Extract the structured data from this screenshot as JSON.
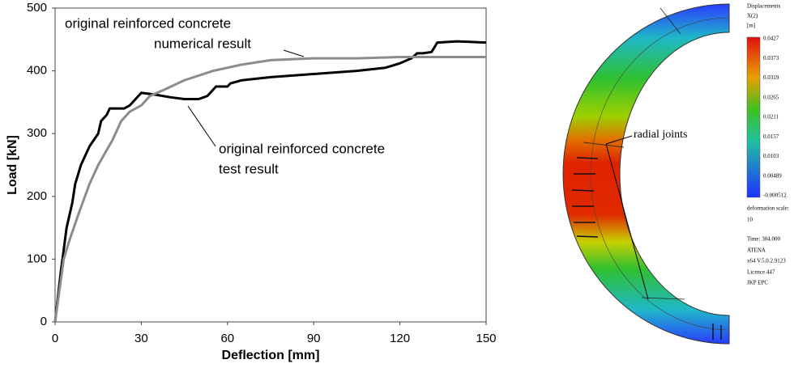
{
  "chart_data": {
    "type": "line",
    "xlabel": "Deflection [mm]",
    "ylabel": "Load [kN]",
    "xlim": [
      0,
      150
    ],
    "ylim": [
      0,
      500
    ],
    "xticks": [
      0,
      30,
      60,
      90,
      120,
      150
    ],
    "yticks": [
      0,
      100,
      200,
      300,
      400,
      500
    ],
    "annotations": [
      {
        "lines": [
          "original reinforced concrete",
          "numerical result"
        ]
      },
      {
        "lines": [
          "original reinforced concrete",
          "test result"
        ]
      }
    ],
    "series": [
      {
        "color": "#000000",
        "x": [
          0,
          2,
          4,
          6,
          7,
          9,
          12,
          15,
          16,
          17,
          18,
          19,
          21,
          24,
          26,
          28,
          30,
          35,
          40,
          45,
          50,
          53,
          55,
          56,
          58,
          60,
          61,
          65,
          75,
          90,
          105,
          115,
          120,
          124,
          126,
          128,
          131,
          133,
          140,
          150
        ],
        "values": [
          0,
          80,
          150,
          190,
          220,
          250,
          280,
          300,
          320,
          325,
          330,
          340,
          340,
          340,
          345,
          355,
          365,
          362,
          358,
          355,
          355,
          360,
          370,
          375,
          375,
          375,
          380,
          385,
          390,
          395,
          400,
          405,
          412,
          420,
          428,
          428,
          430,
          445,
          447,
          445
        ]
      },
      {
        "color": "#8c8c8c",
        "x": [
          0,
          3,
          5,
          8,
          12,
          15,
          20,
          23,
          26,
          30,
          33,
          38,
          45,
          55,
          65,
          75,
          90,
          105,
          120,
          150
        ],
        "values": [
          0,
          100,
          130,
          170,
          220,
          250,
          290,
          320,
          335,
          345,
          360,
          370,
          385,
          400,
          410,
          417,
          420,
          420,
          422,
          422
        ]
      }
    ]
  },
  "figure": {
    "label": "radial joints",
    "legend": {
      "title": [
        "Displacements",
        "X(2)",
        "[m]"
      ],
      "values": [
        0.0427,
        0.0373,
        0.0319,
        0.0265,
        0.0211,
        0.0157,
        0.0103,
        0.00489,
        -0.000512
      ]
    },
    "info": [
      "deformation scale:",
      "10",
      "Time: 304.000",
      "ATENA",
      "x64 V.5.0.2.9123",
      "Licence 447",
      "JKP EPC"
    ]
  }
}
